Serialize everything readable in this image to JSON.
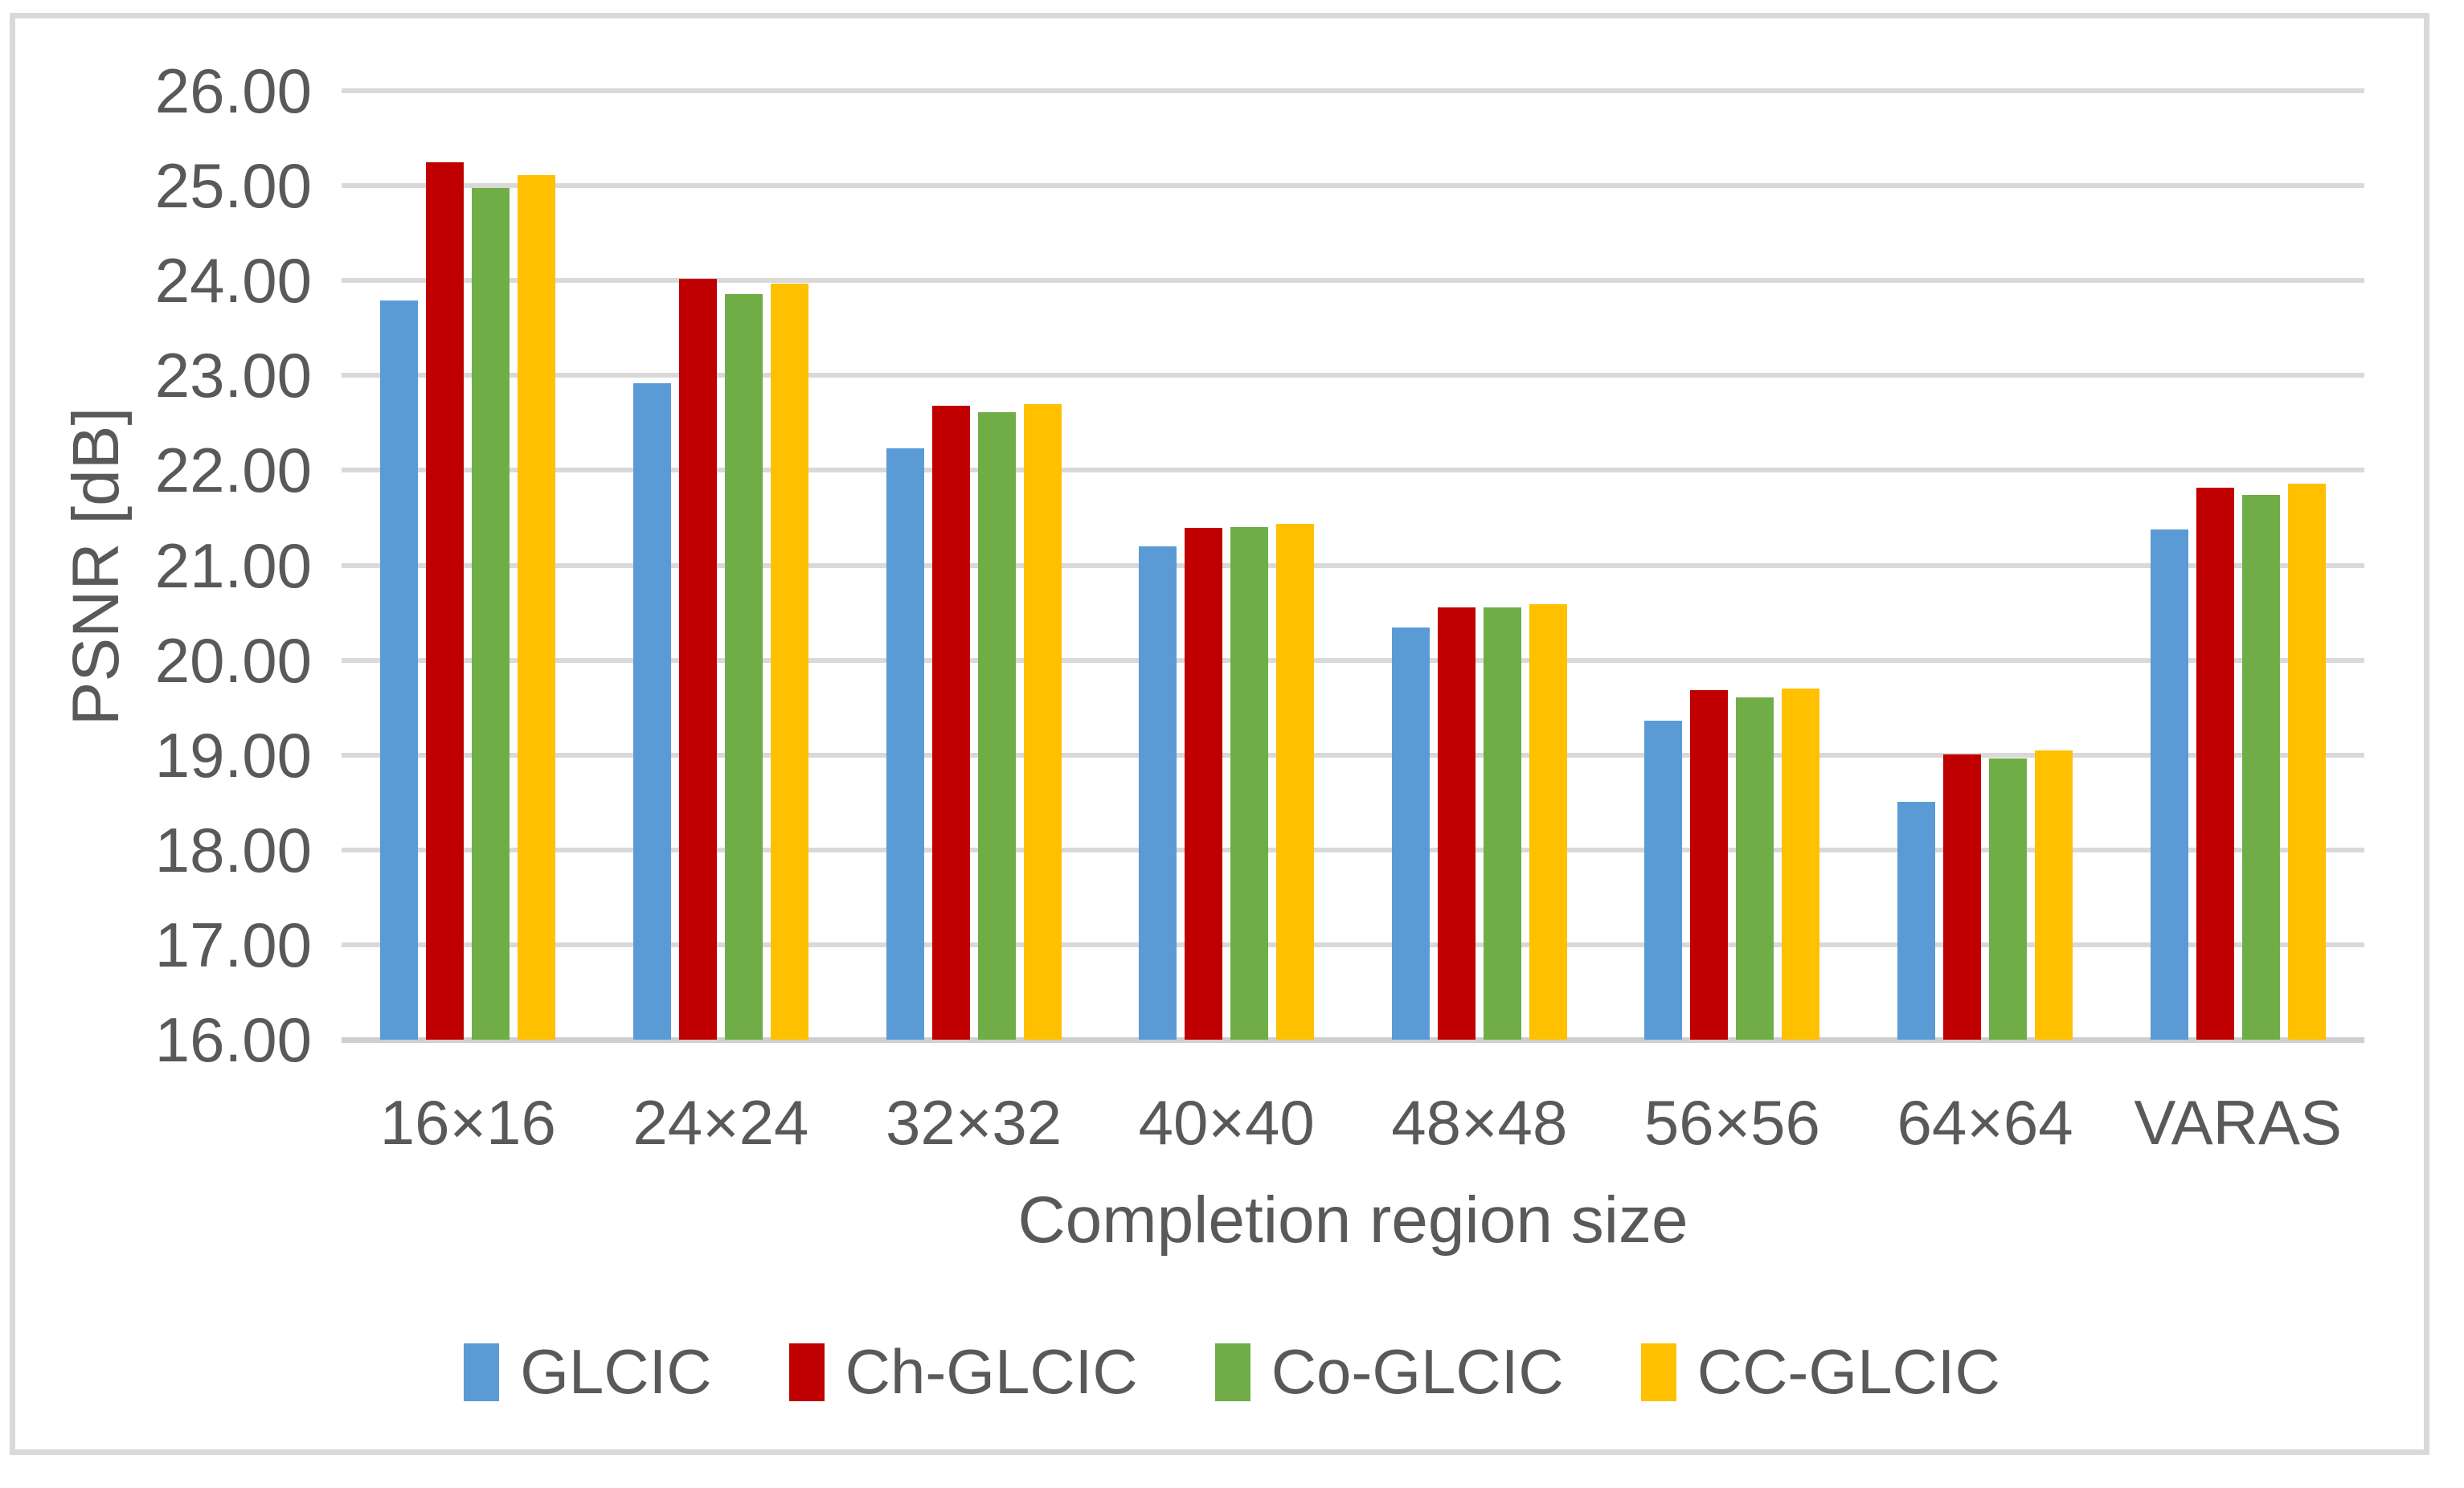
{
  "chart_data": {
    "type": "bar",
    "title": "",
    "xlabel": "Completion region size",
    "ylabel": "PSNR [dB]",
    "ylim": [
      16,
      26
    ],
    "ytick_step": 1,
    "yticks": [
      "26.00",
      "25.00",
      "24.00",
      "23.00",
      "22.00",
      "21.00",
      "20.00",
      "19.00",
      "18.00",
      "17.00",
      "16.00"
    ],
    "grid": "horizontal",
    "legend_position": "bottom",
    "categories": [
      "16×16",
      "24×24",
      "32×32",
      "40×40",
      "48×48",
      "56×56",
      "64×64",
      "VARAS"
    ],
    "series": [
      {
        "name": "GLCIC",
        "color": "#5B9BD5",
        "values": [
          23.79,
          22.92,
          22.23,
          21.2,
          20.34,
          19.36,
          18.51,
          21.38
        ]
      },
      {
        "name": "Ch-GLCIC",
        "color": "#C00000",
        "values": [
          25.25,
          24.02,
          22.68,
          21.39,
          20.56,
          19.68,
          19.01,
          21.82
        ]
      },
      {
        "name": "Co-GLCIC",
        "color": "#70AD47",
        "values": [
          24.98,
          23.86,
          22.61,
          21.4,
          20.56,
          19.61,
          18.96,
          21.74
        ]
      },
      {
        "name": "CC-GLCIC",
        "color": "#FFC000",
        "values": [
          25.11,
          23.97,
          22.7,
          21.44,
          20.59,
          19.7,
          19.05,
          21.86
        ]
      }
    ],
    "colors": {
      "gridline": "#D9D9D9",
      "axis_line": "#CFCFCF",
      "text": "#595959",
      "frame_border": "#D9D9D9",
      "background": "#FFFFFF"
    }
  }
}
